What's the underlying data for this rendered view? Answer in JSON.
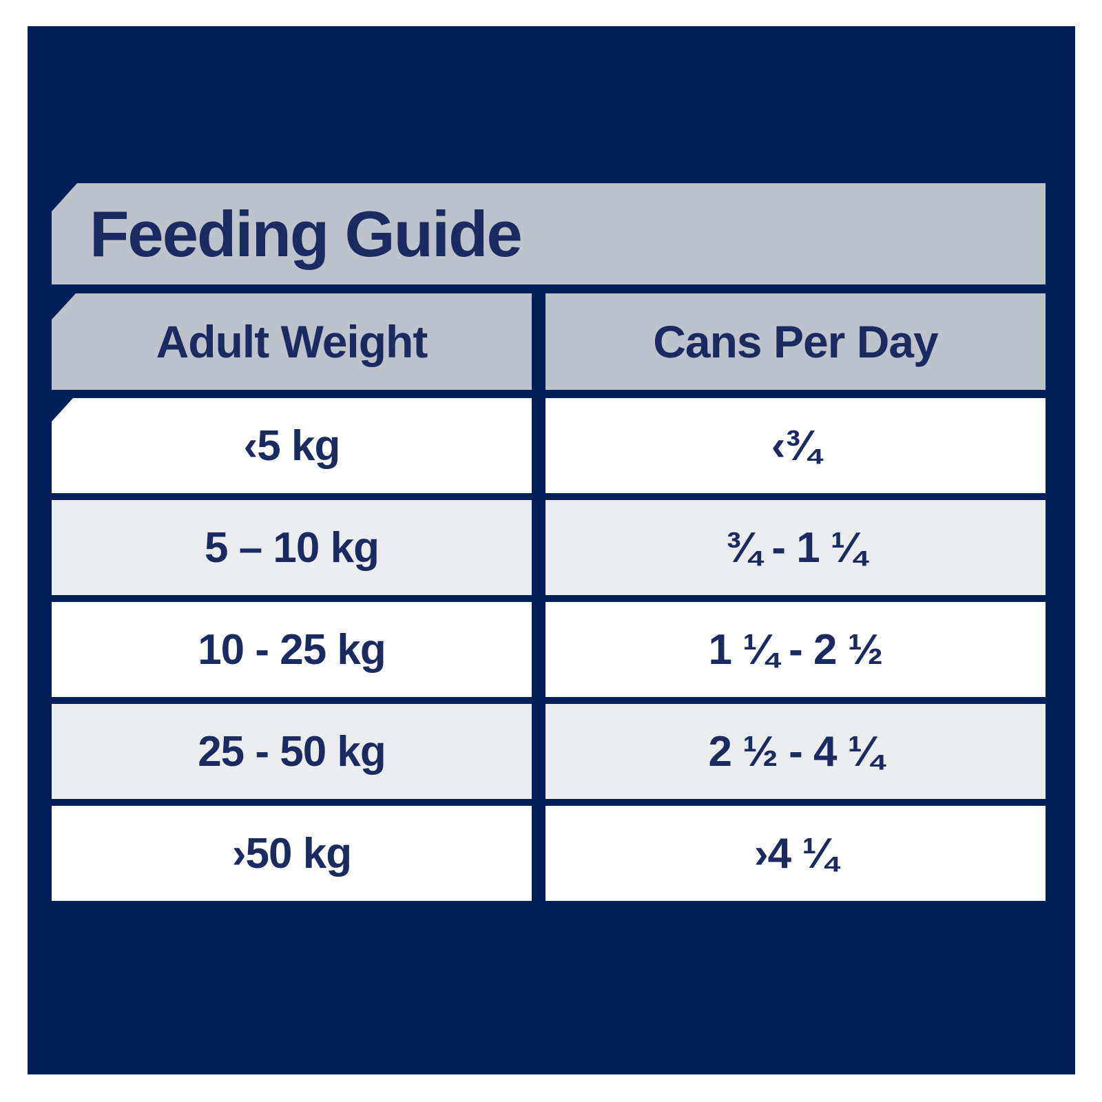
{
  "title": "Feeding Guide",
  "table": {
    "columns": [
      "Adult Weight",
      "Cans Per Day"
    ],
    "rows": [
      {
        "weight": "‹5 kg",
        "cans": "‹¾"
      },
      {
        "weight": "5 – 10 kg",
        "cans": "¾ - 1 ¼"
      },
      {
        "weight": "10 - 25 kg",
        "cans": "1 ¼ - 2 ½"
      },
      {
        "weight": "25 - 50 kg",
        "cans": "2 ½ - 4 ¼"
      },
      {
        "weight": "›50 kg",
        "cans": "›4 ¼"
      }
    ]
  },
  "colors": {
    "page_bg": "#ffffff",
    "panel_navy": "#01205a",
    "header_gray": "#bdc3cb",
    "row_light": "#ebeced",
    "row_white": "#ffffff",
    "text_navy": "#1b2b62"
  }
}
